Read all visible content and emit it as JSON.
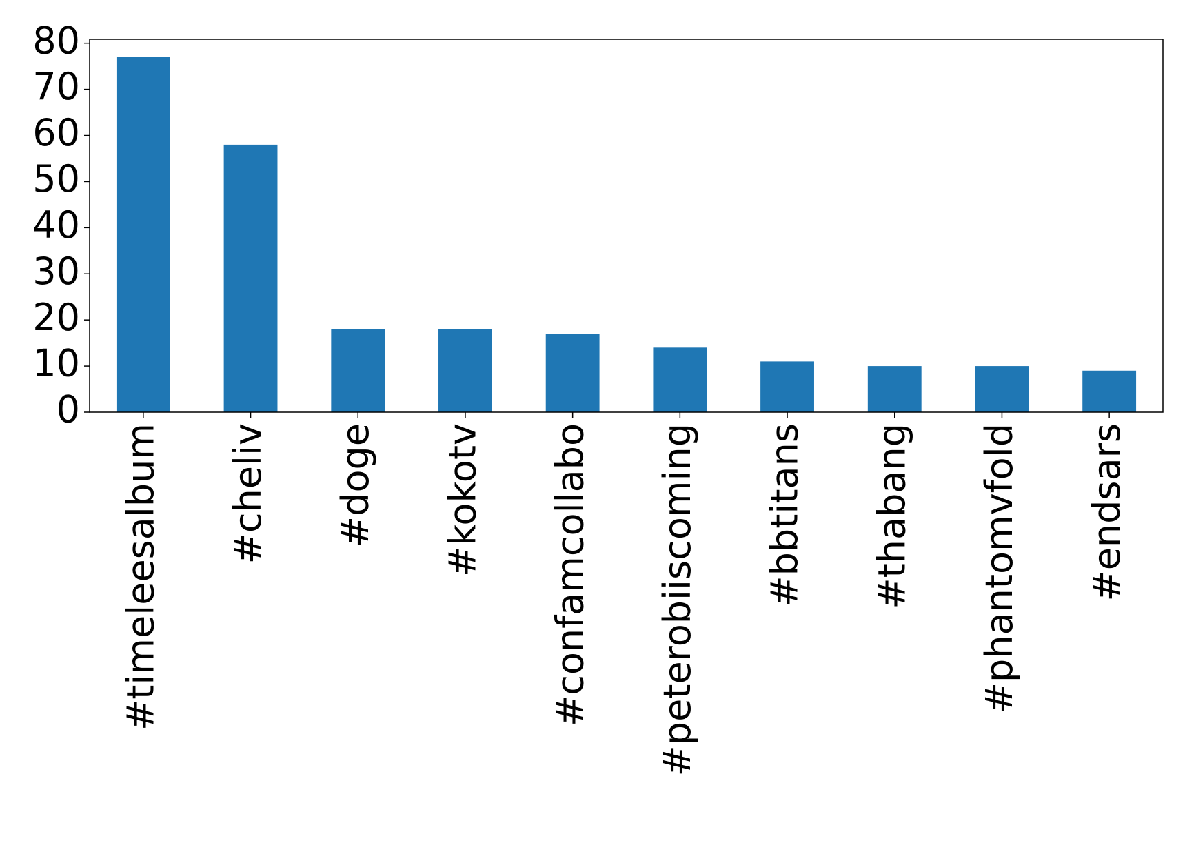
{
  "chart_data": {
    "type": "bar",
    "categories": [
      "#timeleesalbum",
      "#cheliv",
      "#doge",
      "#kokotv",
      "#confamcollabo",
      "#peterobiiscoming",
      "#bbtitans",
      "#thabang",
      "#phantomvfold",
      "#endsars"
    ],
    "values": [
      77,
      58,
      18,
      18,
      17,
      14,
      11,
      10,
      10,
      9
    ],
    "color": "#1f77b4",
    "ylim": [
      0,
      80.85
    ],
    "yticks": [
      0,
      10,
      20,
      30,
      40,
      50,
      60,
      70,
      80
    ],
    "grid": false
  }
}
